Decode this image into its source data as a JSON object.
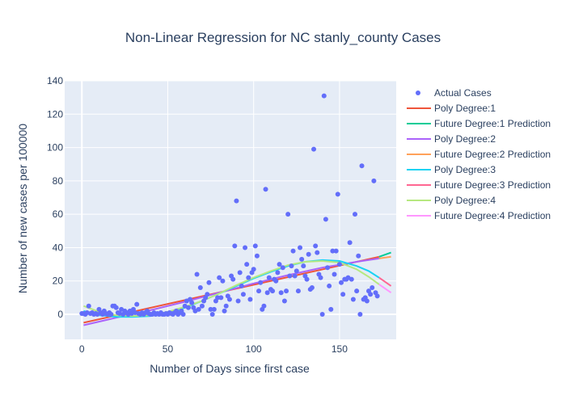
{
  "chart_data": {
    "type": "scatter",
    "title": "Non-Linear Regression for NC stanly_county Cases",
    "xlabel": "Number of Days since first case",
    "ylabel": "Number of new cases per 100000",
    "xlim": [
      -10,
      183
    ],
    "ylim": [
      -15,
      140
    ],
    "x_ticks": [
      0,
      50,
      100,
      150
    ],
    "y_ticks": [
      0,
      20,
      40,
      60,
      80,
      100,
      120,
      140
    ],
    "grid": true,
    "legend_position": "right",
    "background_color": "#e5ecf6",
    "legend": [
      {
        "name": "Actual Cases",
        "kind": "marker",
        "color": "#636efa"
      },
      {
        "name": "Poly Degree:1",
        "kind": "line",
        "color": "#ef553b"
      },
      {
        "name": "Future Degree:1 Prediction",
        "kind": "line",
        "color": "#00cc96"
      },
      {
        "name": "Poly Degree:2",
        "kind": "line",
        "color": "#ab63fa"
      },
      {
        "name": "Future Degree:2 Prediction",
        "kind": "line",
        "color": "#ffa15a"
      },
      {
        "name": "Poly Degree:3",
        "kind": "line",
        "color": "#19d3f3"
      },
      {
        "name": "Future Degree:3 Prediction",
        "kind": "line",
        "color": "#ff6692"
      },
      {
        "name": "Poly Degree:4",
        "kind": "line",
        "color": "#b6e880"
      },
      {
        "name": "Future Degree:4 Prediction",
        "kind": "line",
        "color": "#ff97ff"
      }
    ],
    "actual_cases": [
      [
        0,
        0.5
      ],
      [
        1,
        0.5
      ],
      [
        2,
        0
      ],
      [
        3,
        1
      ],
      [
        4,
        5
      ],
      [
        5,
        0.5
      ],
      [
        6,
        1
      ],
      [
        7,
        0
      ],
      [
        8,
        0.5
      ],
      [
        9,
        0
      ],
      [
        10,
        3
      ],
      [
        11,
        1
      ],
      [
        12,
        0
      ],
      [
        13,
        2
      ],
      [
        14,
        0.5
      ],
      [
        15,
        0
      ],
      [
        16,
        1
      ],
      [
        17,
        0
      ],
      [
        18,
        5
      ],
      [
        19,
        5
      ],
      [
        20,
        4
      ],
      [
        21,
        1
      ],
      [
        22,
        0.5
      ],
      [
        23,
        3
      ],
      [
        24,
        0
      ],
      [
        25,
        2
      ],
      [
        26,
        1
      ],
      [
        27,
        0
      ],
      [
        28,
        2
      ],
      [
        29,
        0.5
      ],
      [
        30,
        3
      ],
      [
        31,
        1
      ],
      [
        32,
        6
      ],
      [
        33,
        0.5
      ],
      [
        34,
        0
      ],
      [
        35,
        1
      ],
      [
        36,
        0
      ],
      [
        37,
        1
      ],
      [
        38,
        2
      ],
      [
        39,
        0.5
      ],
      [
        40,
        0
      ],
      [
        41,
        0
      ],
      [
        42,
        1
      ],
      [
        43,
        0
      ],
      [
        44,
        0.5
      ],
      [
        45,
        0
      ],
      [
        46,
        1
      ],
      [
        47,
        0
      ],
      [
        48,
        0
      ],
      [
        49,
        0.5
      ],
      [
        50,
        0
      ],
      [
        51,
        1
      ],
      [
        52,
        0.5
      ],
      [
        53,
        0
      ],
      [
        54,
        1
      ],
      [
        55,
        2
      ],
      [
        56,
        0
      ],
      [
        57,
        1
      ],
      [
        58,
        2
      ],
      [
        59,
        0
      ],
      [
        60,
        5
      ],
      [
        61,
        8
      ],
      [
        62,
        4
      ],
      [
        63,
        9
      ],
      [
        64,
        7
      ],
      [
        65,
        4
      ],
      [
        66,
        2
      ],
      [
        67,
        24
      ],
      [
        68,
        3
      ],
      [
        69,
        16
      ],
      [
        70,
        5
      ],
      [
        71,
        8
      ],
      [
        72,
        10
      ],
      [
        73,
        12
      ],
      [
        74,
        19
      ],
      [
        75,
        3
      ],
      [
        76,
        0
      ],
      [
        77,
        3
      ],
      [
        78,
        8
      ],
      [
        79,
        10
      ],
      [
        80,
        22
      ],
      [
        81,
        10
      ],
      [
        82,
        20
      ],
      [
        83,
        2
      ],
      [
        84,
        5
      ],
      [
        85,
        11
      ],
      [
        86,
        9
      ],
      [
        87,
        23
      ],
      [
        88,
        21
      ],
      [
        89,
        41
      ],
      [
        90,
        68
      ],
      [
        91,
        8
      ],
      [
        92,
        25
      ],
      [
        93,
        17
      ],
      [
        94,
        12
      ],
      [
        95,
        40
      ],
      [
        96,
        30
      ],
      [
        97,
        22
      ],
      [
        98,
        9
      ],
      [
        99,
        25
      ],
      [
        100,
        27
      ],
      [
        101,
        41
      ],
      [
        102,
        35
      ],
      [
        103,
        14
      ],
      [
        104,
        19
      ],
      [
        105,
        3
      ],
      [
        106,
        5
      ],
      [
        107,
        75
      ],
      [
        108,
        13
      ],
      [
        109,
        22
      ],
      [
        110,
        15
      ],
      [
        111,
        14
      ],
      [
        112,
        21
      ],
      [
        113,
        20
      ],
      [
        114,
        25
      ],
      [
        115,
        30
      ],
      [
        116,
        13
      ],
      [
        117,
        28
      ],
      [
        118,
        8
      ],
      [
        119,
        14
      ],
      [
        120,
        60
      ],
      [
        121,
        23
      ],
      [
        122,
        29
      ],
      [
        123,
        38
      ],
      [
        124,
        23
      ],
      [
        125,
        26
      ],
      [
        126,
        14
      ],
      [
        127,
        40
      ],
      [
        128,
        33
      ],
      [
        129,
        29
      ],
      [
        130,
        23
      ],
      [
        131,
        21
      ],
      [
        132,
        36
      ],
      [
        133,
        15
      ],
      [
        134,
        16
      ],
      [
        135,
        99
      ],
      [
        136,
        41
      ],
      [
        137,
        37
      ],
      [
        138,
        24
      ],
      [
        139,
        22
      ],
      [
        140,
        0
      ],
      [
        141,
        131
      ],
      [
        142,
        57
      ],
      [
        143,
        28
      ],
      [
        144,
        17
      ],
      [
        145,
        3
      ],
      [
        146,
        38
      ],
      [
        147,
        24
      ],
      [
        148,
        38
      ],
      [
        149,
        72
      ],
      [
        150,
        30
      ],
      [
        151,
        19
      ],
      [
        152,
        12
      ],
      [
        153,
        21
      ],
      [
        154,
        21
      ],
      [
        155,
        22
      ],
      [
        156,
        43
      ],
      [
        157,
        21
      ],
      [
        158,
        9
      ],
      [
        159,
        60
      ],
      [
        160,
        14
      ],
      [
        161,
        35
      ],
      [
        162,
        0
      ],
      [
        163,
        89
      ],
      [
        164,
        9
      ],
      [
        165,
        10
      ],
      [
        166,
        8
      ],
      [
        167,
        14
      ],
      [
        168,
        12
      ],
      [
        169,
        16
      ],
      [
        170,
        80
      ],
      [
        171,
        13
      ],
      [
        172,
        11
      ]
    ],
    "fitted_lines": [
      {
        "name": "Poly Degree:1",
        "color": "#ef553b",
        "points": [
          [
            1,
            -5
          ],
          [
            173,
            34.5
          ]
        ]
      },
      {
        "name": "Future Degree:1 Prediction",
        "color": "#00cc96",
        "points": [
          [
            173,
            34.5
          ],
          [
            180,
            37
          ]
        ]
      },
      {
        "name": "Poly Degree:2",
        "color": "#ab63fa",
        "points": [
          [
            1,
            -6.5
          ],
          [
            20,
            -2
          ],
          [
            40,
            2.5
          ],
          [
            60,
            7.5
          ],
          [
            80,
            13
          ],
          [
            100,
            18.5
          ],
          [
            120,
            23.5
          ],
          [
            140,
            28
          ],
          [
            160,
            31.5
          ],
          [
            173,
            33.5
          ]
        ]
      },
      {
        "name": "Future Degree:2 Prediction",
        "color": "#ffa15a",
        "points": [
          [
            173,
            33.5
          ],
          [
            180,
            34.5
          ]
        ]
      },
      {
        "name": "Poly Degree:3",
        "color": "#19d3f3",
        "points": [
          [
            1,
            2
          ],
          [
            10,
            -0.5
          ],
          [
            20,
            -1.5
          ],
          [
            30,
            -1.5
          ],
          [
            40,
            -1
          ],
          [
            50,
            1
          ],
          [
            60,
            4
          ],
          [
            70,
            8
          ],
          [
            80,
            12.5
          ],
          [
            90,
            17
          ],
          [
            100,
            21.5
          ],
          [
            110,
            25.5
          ],
          [
            120,
            29
          ],
          [
            130,
            31.5
          ],
          [
            140,
            32.5
          ],
          [
            150,
            32
          ],
          [
            160,
            29
          ],
          [
            167,
            26
          ],
          [
            173,
            22
          ]
        ]
      },
      {
        "name": "Future Degree:3 Prediction",
        "color": "#ff6692",
        "points": [
          [
            173,
            22
          ],
          [
            180,
            17
          ]
        ]
      },
      {
        "name": "Poly Degree:4",
        "color": "#b6e880",
        "points": [
          [
            1,
            5
          ],
          [
            10,
            1.5
          ],
          [
            20,
            -0.5
          ],
          [
            30,
            -1
          ],
          [
            40,
            -0.5
          ],
          [
            50,
            1.5
          ],
          [
            60,
            4.5
          ],
          [
            70,
            8
          ],
          [
            80,
            12.5
          ],
          [
            90,
            17.5
          ],
          [
            100,
            22
          ],
          [
            110,
            26
          ],
          [
            120,
            29.5
          ],
          [
            130,
            31.5
          ],
          [
            140,
            32
          ],
          [
            150,
            31
          ],
          [
            160,
            27
          ],
          [
            167,
            22.5
          ],
          [
            173,
            18
          ]
        ]
      },
      {
        "name": "Future Degree:4 Prediction",
        "color": "#ff97ff",
        "points": [
          [
            173,
            18
          ],
          [
            180,
            13
          ]
        ]
      }
    ]
  }
}
